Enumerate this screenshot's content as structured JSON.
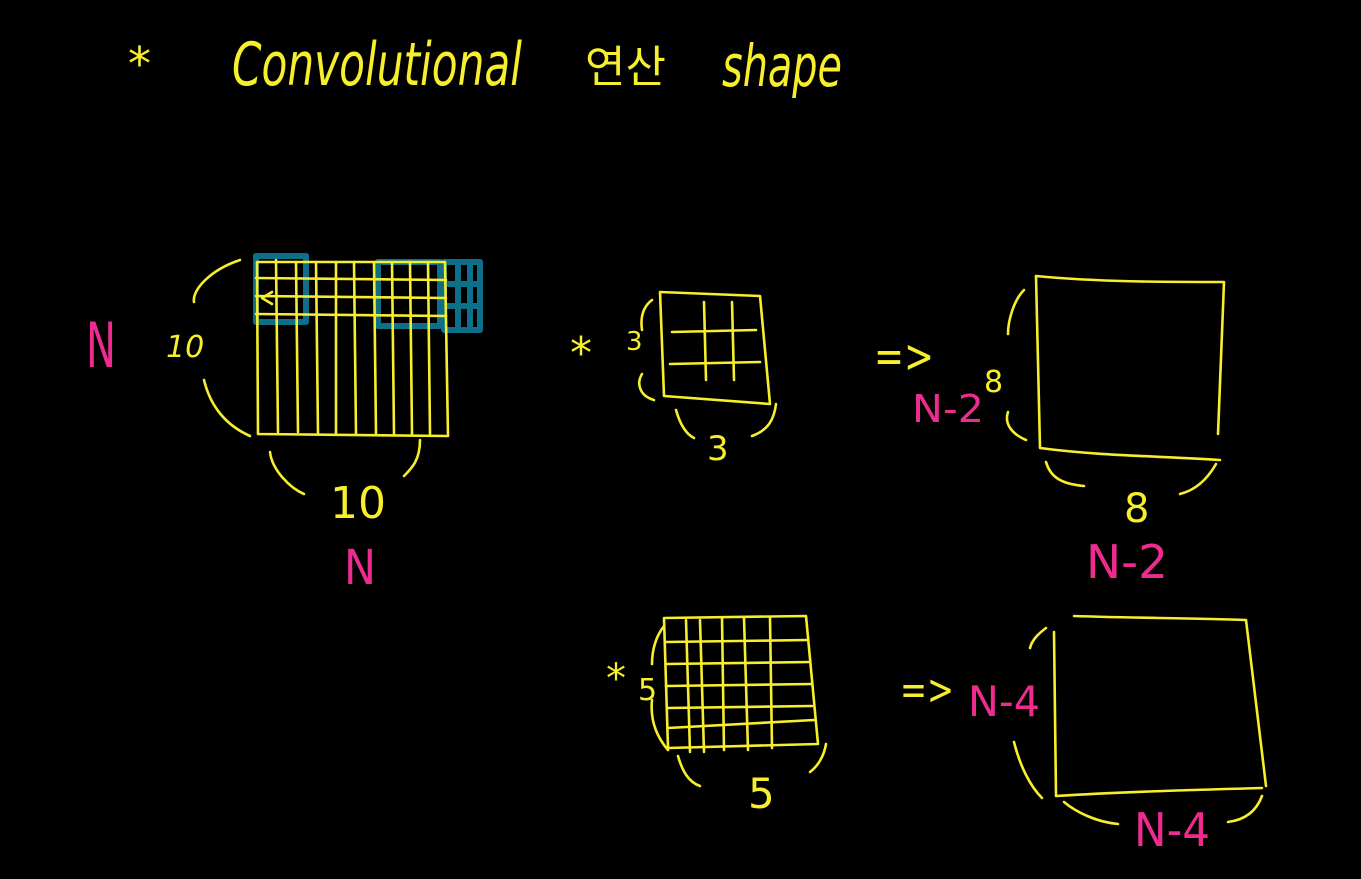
{
  "title": {
    "bullet": "*",
    "word": "Convolutional",
    "korean": "연산",
    "shape": "shape"
  },
  "input": {
    "height_name": "N",
    "height_value": "10",
    "width_value": "10",
    "width_name": "N"
  },
  "filter_3": {
    "operator": "*",
    "height_value": "3",
    "width_value": "3",
    "arrow": "=>"
  },
  "output_3": {
    "height_value": "8",
    "height_name": "N-2",
    "width_value": "8",
    "width_name": "N-2"
  },
  "filter_5": {
    "operator": "*",
    "height_value": "5",
    "width_value": "5",
    "arrow": "=>"
  },
  "output_5": {
    "height_name": "N-4",
    "width_name": "N-4"
  },
  "colors": {
    "background": "#000000",
    "ink_yellow": "#f7ee2c",
    "ink_magenta": "#ee2b8f",
    "highlight_teal": "#0d6f88"
  }
}
